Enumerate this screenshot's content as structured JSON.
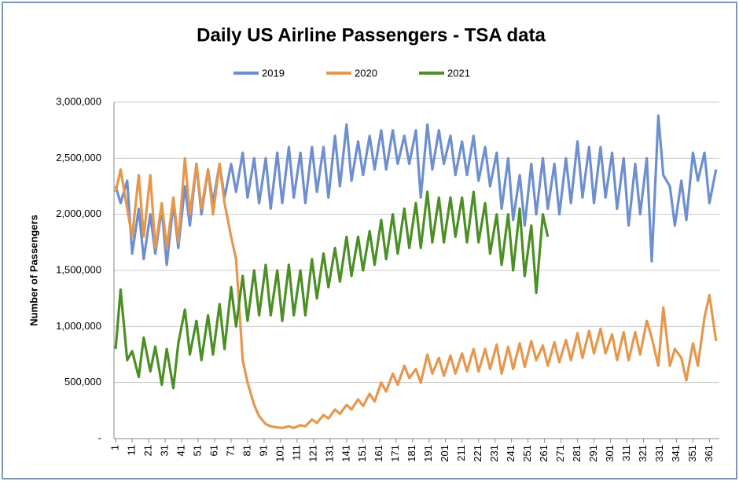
{
  "chart_data": {
    "type": "line",
    "title": "Daily US Airline Passengers - TSA data",
    "y_label": "Number of Passengers",
    "x": [
      1,
      4,
      8,
      11,
      15,
      18,
      22,
      25,
      29,
      32,
      36,
      39,
      43,
      46,
      50,
      53,
      57,
      60,
      64,
      67,
      71,
      74,
      78,
      81,
      85,
      88,
      92,
      95,
      99,
      102,
      106,
      109,
      113,
      116,
      120,
      123,
      127,
      130,
      134,
      137,
      141,
      144,
      148,
      151,
      155,
      158,
      162,
      165,
      169,
      172,
      176,
      179,
      183,
      186,
      190,
      193,
      197,
      200,
      204,
      207,
      211,
      214,
      218,
      221,
      225,
      228,
      232,
      235,
      239,
      242,
      246,
      249,
      253,
      256,
      260,
      263,
      267,
      270,
      274,
      277,
      281,
      284,
      288,
      291,
      295,
      298,
      302,
      305,
      309,
      312,
      316,
      319,
      323,
      326,
      330,
      333,
      337,
      340,
      344,
      347,
      351,
      354,
      358,
      361,
      365
    ],
    "xlim": [
      0,
      367
    ],
    "xticks": [
      1,
      11,
      21,
      31,
      41,
      51,
      61,
      71,
      81,
      91,
      101,
      111,
      121,
      131,
      141,
      151,
      161,
      171,
      181,
      191,
      201,
      211,
      221,
      231,
      241,
      251,
      261,
      271,
      281,
      291,
      301,
      311,
      321,
      331,
      341,
      351,
      361
    ],
    "ylim": [
      0,
      3000000
    ],
    "yticks": [
      {
        "value": 0,
        "label": "-"
      },
      {
        "value": 500000,
        "label": "500,000"
      },
      {
        "value": 1000000,
        "label": "1,000,000"
      },
      {
        "value": 1500000,
        "label": "1,500,000"
      },
      {
        "value": 2000000,
        "label": "2,000,000"
      },
      {
        "value": 2500000,
        "label": "2,500,000"
      },
      {
        "value": 3000000,
        "label": "3,000,000"
      }
    ],
    "grid": true,
    "legend": "top",
    "series": [
      {
        "name": "2019",
        "color": "#6d8fd0",
        "values": [
          2250000,
          2100000,
          2300000,
          1650000,
          2050000,
          1600000,
          2000000,
          1650000,
          2050000,
          1550000,
          2100000,
          1700000,
          2250000,
          1900000,
          2450000,
          2000000,
          2400000,
          2100000,
          2450000,
          2150000,
          2450000,
          2200000,
          2550000,
          2150000,
          2500000,
          2100000,
          2500000,
          2050000,
          2550000,
          2100000,
          2600000,
          2150000,
          2550000,
          2100000,
          2600000,
          2200000,
          2600000,
          2150000,
          2700000,
          2250000,
          2800000,
          2300000,
          2650000,
          2350000,
          2700000,
          2400000,
          2750000,
          2400000,
          2750000,
          2450000,
          2700000,
          2450000,
          2750000,
          2150000,
          2800000,
          2400000,
          2750000,
          2450000,
          2700000,
          2350000,
          2650000,
          2350000,
          2700000,
          2300000,
          2600000,
          2250000,
          2550000,
          2050000,
          2500000,
          1950000,
          2350000,
          1900000,
          2450000,
          2000000,
          2500000,
          2050000,
          2450000,
          2000000,
          2500000,
          2100000,
          2650000,
          2150000,
          2600000,
          2100000,
          2600000,
          2150000,
          2550000,
          2050000,
          2500000,
          1900000,
          2450000,
          2000000,
          2500000,
          1580000,
          2880000,
          2350000,
          2250000,
          1900000,
          2300000,
          1950000,
          2550000,
          2300000,
          2550000,
          2100000,
          2400000
        ]
      },
      {
        "name": "2020",
        "color": "#e5974e",
        "values": [
          2200000,
          2400000,
          2050000,
          1800000,
          2350000,
          1800000,
          2350000,
          1700000,
          2100000,
          1700000,
          2150000,
          1750000,
          2500000,
          2000000,
          2450000,
          2050000,
          2400000,
          2000000,
          2450000,
          2100000,
          1800000,
          1600000,
          700000,
          500000,
          300000,
          200000,
          130000,
          110000,
          100000,
          95000,
          110000,
          95000,
          120000,
          110000,
          170000,
          140000,
          210000,
          180000,
          260000,
          220000,
          300000,
          260000,
          350000,
          290000,
          400000,
          330000,
          500000,
          420000,
          580000,
          480000,
          650000,
          540000,
          620000,
          500000,
          750000,
          580000,
          720000,
          560000,
          740000,
          580000,
          760000,
          600000,
          800000,
          600000,
          800000,
          620000,
          840000,
          580000,
          820000,
          620000,
          850000,
          640000,
          870000,
          700000,
          830000,
          650000,
          860000,
          680000,
          880000,
          700000,
          940000,
          720000,
          960000,
          760000,
          980000,
          760000,
          930000,
          700000,
          950000,
          700000,
          950000,
          750000,
          1050000,
          900000,
          650000,
          1170000,
          650000,
          800000,
          720000,
          520000,
          850000,
          650000,
          1080000,
          1280000,
          870000
        ]
      },
      {
        "name": "2021",
        "color": "#4b8f25",
        "values": [
          800000,
          1330000,
          700000,
          780000,
          550000,
          900000,
          600000,
          820000,
          480000,
          800000,
          450000,
          850000,
          1150000,
          750000,
          1050000,
          700000,
          1100000,
          750000,
          1200000,
          800000,
          1350000,
          1000000,
          1450000,
          1050000,
          1500000,
          1100000,
          1550000,
          1100000,
          1500000,
          1050000,
          1550000,
          1100000,
          1500000,
          1100000,
          1600000,
          1250000,
          1650000,
          1350000,
          1700000,
          1400000,
          1800000,
          1450000,
          1800000,
          1500000,
          1850000,
          1550000,
          1950000,
          1600000,
          2000000,
          1650000,
          2050000,
          1700000,
          2100000,
          1700000,
          2200000,
          1750000,
          2150000,
          1750000,
          2150000,
          1800000,
          2150000,
          1750000,
          2200000,
          1750000,
          2100000,
          1650000,
          2000000,
          1550000,
          2000000,
          1500000,
          2050000,
          1450000,
          1900000,
          1300000,
          2000000,
          1800000,
          null,
          null,
          null,
          null,
          null,
          null,
          null,
          null,
          null,
          null,
          null,
          null,
          null,
          null,
          null,
          null,
          null,
          null,
          null,
          null,
          null,
          null,
          null,
          null,
          null,
          null,
          null,
          null,
          null
        ]
      }
    ]
  }
}
